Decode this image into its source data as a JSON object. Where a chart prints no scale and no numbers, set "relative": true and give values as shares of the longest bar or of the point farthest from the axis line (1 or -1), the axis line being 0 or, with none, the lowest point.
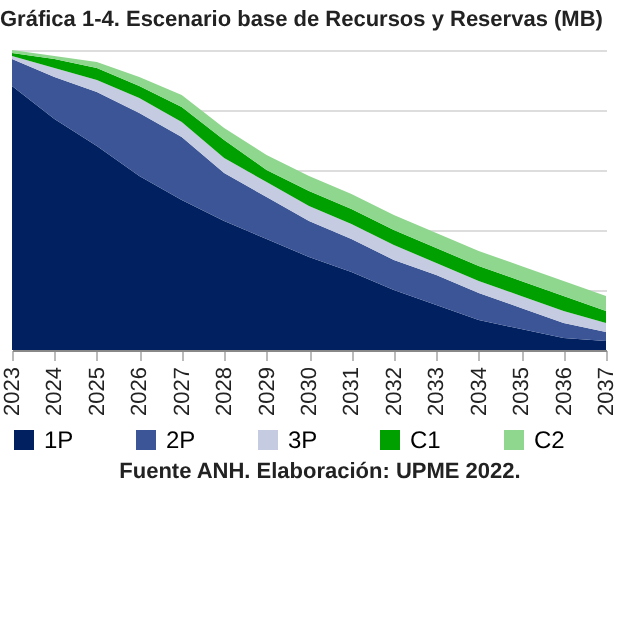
{
  "chart_data": {
    "type": "area",
    "title": "Gráfica 1-4. Escenario base de Recursos y Reservas (MB)",
    "stacked": true,
    "relative": true,
    "grid": "y",
    "legend": "bottom",
    "categories": [
      "2023",
      "2024",
      "2025",
      "2026",
      "2027",
      "2028",
      "2029",
      "2030",
      "2031",
      "2032",
      "2033",
      "2034",
      "2035",
      "2036",
      "2037"
    ],
    "series": [
      {
        "name": "1P",
        "color": "#002060",
        "values": [
          0.88,
          0.77,
          0.68,
          0.58,
          0.5,
          0.43,
          0.37,
          0.31,
          0.26,
          0.2,
          0.15,
          0.1,
          0.07,
          0.04,
          0.03
        ]
      },
      {
        "name": "2P",
        "color": "#3b5596",
        "values": [
          0.09,
          0.14,
          0.18,
          0.21,
          0.21,
          0.16,
          0.14,
          0.12,
          0.11,
          0.1,
          0.1,
          0.09,
          0.07,
          0.05,
          0.03
        ]
      },
      {
        "name": "3P",
        "color": "#c5cbe0",
        "values": [
          0.01,
          0.03,
          0.04,
          0.05,
          0.05,
          0.05,
          0.05,
          0.05,
          0.05,
          0.05,
          0.04,
          0.04,
          0.04,
          0.04,
          0.03
        ]
      },
      {
        "name": "C1",
        "color": "#00a000",
        "values": [
          0.01,
          0.03,
          0.04,
          0.04,
          0.05,
          0.06,
          0.04,
          0.05,
          0.05,
          0.05,
          0.05,
          0.05,
          0.05,
          0.05,
          0.04
        ]
      },
      {
        "name": "C2",
        "color": "#8fd68f",
        "values": [
          0.01,
          0.01,
          0.02,
          0.03,
          0.04,
          0.04,
          0.05,
          0.05,
          0.05,
          0.05,
          0.05,
          0.05,
          0.05,
          0.05,
          0.05
        ]
      }
    ],
    "annotations": [
      "Fuente ANH. Elaboración: UPME 2022."
    ]
  }
}
